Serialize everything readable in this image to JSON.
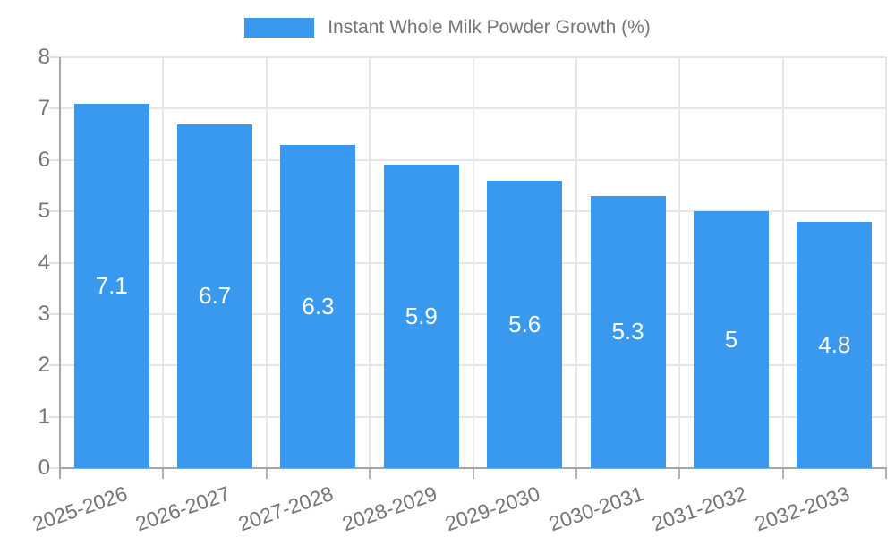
{
  "legend": {
    "label": "Instant Whole Milk Powder Growth (%)"
  },
  "chart_data": {
    "type": "bar",
    "title": "Instant Whole Milk Powder Growth (%)",
    "categories": [
      "2025-2026",
      "2026-2027",
      "2027-2028",
      "2028-2029",
      "2029-2030",
      "2030-2031",
      "2031-2032",
      "2032-2033"
    ],
    "values": [
      7.1,
      6.7,
      6.3,
      5.9,
      5.6,
      5.3,
      5,
      4.8
    ],
    "value_labels": [
      "7.1",
      "6.7",
      "6.3",
      "5.9",
      "5.6",
      "5.3",
      "5",
      "4.8"
    ],
    "xlabel": "",
    "ylabel": "",
    "ylim": [
      0,
      8
    ],
    "yticks": [
      0,
      1,
      2,
      3,
      4,
      5,
      6,
      7,
      8
    ],
    "grid": true,
    "legend_position": "top-center",
    "x_tick_rotation_deg": -19,
    "colors": {
      "bar": "#3899ee",
      "bar_label": "#ffffff",
      "gridline": "#e6e6e6",
      "axis_line": "#a6a6a6",
      "tick_text": "#757575",
      "legend_text": "#757575"
    }
  }
}
